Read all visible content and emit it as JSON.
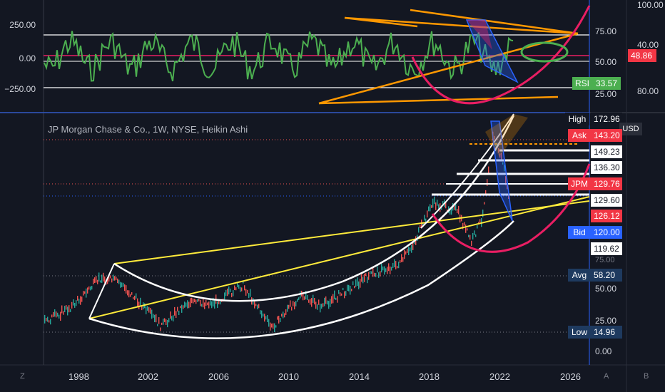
{
  "symbol_title": "JP Morgan Chase & Co., 1W, NYSE, Heikin Ashi",
  "currency": "USD",
  "indicator_pane": {
    "left_ticks": [
      "250.00",
      "0.00",
      "−250.00"
    ],
    "right_ticks": [
      "75.00",
      "50.00",
      "25.00"
    ],
    "far_right_ticks": [
      "100.00",
      "40.00",
      "80.00"
    ],
    "current_value": "48.86",
    "rsi_label": "RSI",
    "rsi_value": "33.57"
  },
  "price_pane": {
    "high_label": "High",
    "high_value": "172.96",
    "ask_label": "Ask",
    "ask_value": "143.20",
    "levels": [
      "149.23",
      "136.30"
    ],
    "symbol_label": "JPM",
    "symbol_price": "129.76",
    "level_2": "129.60",
    "red_level": "126.12",
    "bid_label": "Bid",
    "bid_value": "120.00",
    "level_3": "119.62",
    "partial_tick": "75.00",
    "avg_label": "Avg",
    "avg_value": "58.20",
    "ticks": [
      "50.00",
      "25.00",
      "0.00"
    ],
    "low_label": "Low",
    "low_value": "14.96"
  },
  "x_axis": {
    "years": [
      "1998",
      "2002",
      "2006",
      "2010",
      "2014",
      "2018",
      "2022",
      "2026"
    ]
  },
  "corners": {
    "z_icon": "Z",
    "a_button": "A",
    "b_button": "B"
  },
  "colors": {
    "background": "#131722",
    "green_line": "#4caf50",
    "red_line": "#e91e63",
    "orange_line": "#ff9800",
    "yellow_line": "#ffeb3b",
    "white_line": "#ffffff",
    "blue_line": "#2962ff",
    "up_candle": "#26a69a",
    "down_candle": "#ef5350"
  }
}
